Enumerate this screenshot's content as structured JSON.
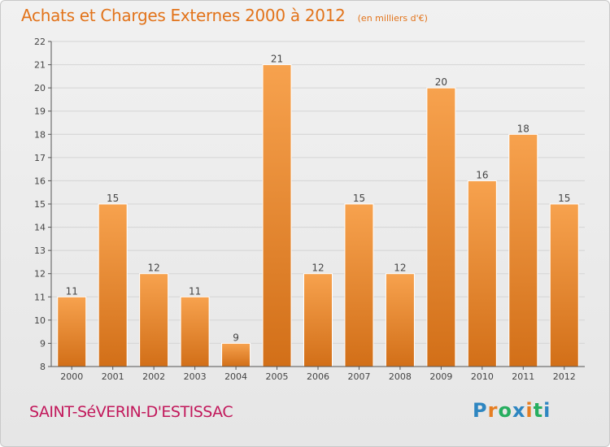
{
  "header": {
    "title": "Achats et Charges Externes 2000 à 2012",
    "subtitle": "(en milliers d'€)"
  },
  "footer": {
    "location": "SAINT-SéVERIN-D'ESTISSAC",
    "logo": {
      "text": "Proxiti",
      "letter_colors": [
        "#2e86c1",
        "#e67e22",
        "#27ae60",
        "#2e86c1",
        "#e67e22",
        "#27ae60",
        "#2e86c1"
      ]
    }
  },
  "colors": {
    "bar_top": "#f7a24e",
    "bar_bottom": "#d26f18",
    "title": "#e2731a",
    "location": "#c2185b",
    "axis": "#555555",
    "grid": "#d4d4d4"
  },
  "chart_data": {
    "type": "bar",
    "title": "Achats et Charges Externes 2000 à 2012",
    "subtitle": "(en milliers d'€)",
    "categories": [
      "2000",
      "2001",
      "2002",
      "2003",
      "2004",
      "2005",
      "2006",
      "2007",
      "2008",
      "2009",
      "2010",
      "2011",
      "2012"
    ],
    "values": [
      11,
      15,
      12,
      11,
      9,
      21,
      12,
      15,
      12,
      20,
      16,
      18,
      15
    ],
    "ylim": [
      8,
      22
    ],
    "yticks": [
      8,
      9,
      10,
      11,
      12,
      13,
      14,
      15,
      16,
      17,
      18,
      19,
      20,
      21,
      22
    ],
    "grid": true,
    "data_labels": true
  }
}
